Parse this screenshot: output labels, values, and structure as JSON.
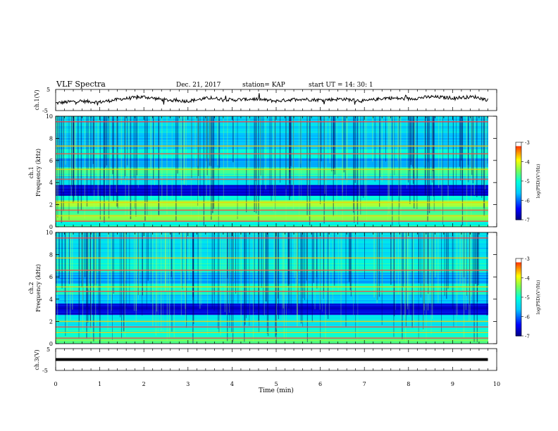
{
  "header": {
    "title": "VLF Spectra",
    "date": "Dec. 21, 2017",
    "station": "station= KAP",
    "start": "start  UT =   14: 30: 1"
  },
  "colors": {
    "colormap": [
      "#000080",
      "#0000ff",
      "#00c0ff",
      "#00ffff",
      "#80ff80",
      "#ffff00",
      "#ff8000",
      "#ff0000",
      "#ffffff"
    ],
    "line": "#000000"
  },
  "chart_data": [
    {
      "type": "line",
      "panel": "ch1-waveform",
      "ylabel": "ch.1(V)",
      "ylim": [
        -5,
        5
      ],
      "yticks": [
        "5",
        "-5"
      ],
      "x_unit": "min",
      "xlim": [
        0,
        10
      ],
      "x": [
        0,
        0.5,
        1,
        1.5,
        2,
        2.5,
        3,
        3.5,
        4,
        4.5,
        5,
        5.5,
        6,
        6.5,
        7,
        7.5,
        8,
        8.5,
        9,
        9.5,
        9.8
      ],
      "y": [
        -1.5,
        -0.5,
        -1,
        0.5,
        1.5,
        0,
        -0.5,
        1,
        0,
        0.5,
        -0.5,
        0.5,
        0,
        0.5,
        -0.5,
        1,
        0.5,
        1.5,
        1,
        1.5,
        0
      ]
    },
    {
      "type": "heatmap",
      "panel": "ch1-spectrogram",
      "ylabel": "Frequency (kHz)",
      "channel_label": "ch.1",
      "ylim": [
        0,
        10
      ],
      "yticks": [
        "0",
        "2",
        "4",
        "6",
        "8",
        "10"
      ],
      "xlim": [
        0,
        10
      ],
      "colorbar": {
        "label": "log(PSD)(V²/Hz)",
        "ticks": [
          "-3",
          "-4",
          "-5",
          "-6",
          "-7"
        ],
        "range": [
          -7,
          -3
        ]
      },
      "bands": [
        {
          "f_from": 0,
          "f_to": 0.5,
          "level": -5.0
        },
        {
          "f_from": 0.5,
          "f_to": 1.0,
          "level": -4.4
        },
        {
          "f_from": 1.0,
          "f_to": 1.8,
          "level": -4.6
        },
        {
          "f_from": 1.8,
          "f_to": 2.4,
          "level": -4.2
        },
        {
          "f_from": 2.4,
          "f_to": 2.8,
          "level": -5.0
        },
        {
          "f_from": 2.8,
          "f_to": 3.8,
          "level": -6.6
        },
        {
          "f_from": 3.8,
          "f_to": 4.6,
          "level": -5.4
        },
        {
          "f_from": 4.6,
          "f_to": 5.4,
          "level": -4.8
        },
        {
          "f_from": 5.4,
          "f_to": 6.2,
          "level": -5.8
        },
        {
          "f_from": 6.2,
          "f_to": 7.0,
          "level": -5.0
        },
        {
          "f_from": 7.0,
          "f_to": 8.5,
          "level": -5.6
        },
        {
          "f_from": 8.5,
          "f_to": 10,
          "level": -5.4
        }
      ],
      "lines_khz": [
        0.5,
        1.0,
        1.5,
        2.2,
        4.3,
        5.2,
        6.6,
        7.3,
        9.5
      ]
    },
    {
      "type": "heatmap",
      "panel": "ch2-spectrogram",
      "ylabel": "Frequency (kHz)",
      "channel_label": "ch.2",
      "ylim": [
        0,
        10
      ],
      "yticks": [
        "0",
        "2",
        "4",
        "6",
        "8",
        "10"
      ],
      "xlim": [
        0,
        10
      ],
      "colorbar": {
        "label": "log(PSD)(V²/Hz)",
        "ticks": [
          "-3",
          "-4",
          "-5",
          "-6",
          "-7"
        ],
        "range": [
          -7,
          -3
        ]
      },
      "bands": [
        {
          "f_from": 0,
          "f_to": 0.6,
          "level": -4.6
        },
        {
          "f_from": 0.6,
          "f_to": 1.6,
          "level": -5.0
        },
        {
          "f_from": 1.6,
          "f_to": 2.6,
          "level": -5.3
        },
        {
          "f_from": 2.6,
          "f_to": 3.6,
          "level": -6.6
        },
        {
          "f_from": 3.6,
          "f_to": 4.4,
          "level": -5.6
        },
        {
          "f_from": 4.4,
          "f_to": 5.4,
          "level": -5.0
        },
        {
          "f_from": 5.4,
          "f_to": 6.4,
          "level": -5.7
        },
        {
          "f_from": 6.4,
          "f_to": 7.6,
          "level": -5.1
        },
        {
          "f_from": 7.6,
          "f_to": 10,
          "level": -5.4
        }
      ],
      "lines_khz": [
        0.5,
        1.0,
        1.5,
        2.0,
        4.7,
        5.1,
        6.6,
        7.7,
        9.5
      ]
    },
    {
      "type": "line",
      "panel": "ch3-waveform",
      "ylabel": "ch.3(V)",
      "ylim": [
        -5,
        5
      ],
      "yticks": [
        "5",
        "-5"
      ],
      "x": [
        0,
        9.8
      ],
      "y": [
        0,
        0
      ]
    }
  ],
  "xaxis": {
    "label": "Time (min)",
    "ticks": [
      "0",
      "1",
      "2",
      "3",
      "4",
      "5",
      "6",
      "7",
      "8",
      "9",
      "10"
    ]
  }
}
